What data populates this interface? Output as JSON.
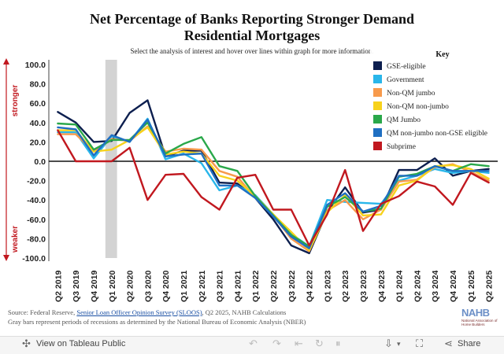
{
  "title_line1": "Net Percentage of Banks Reporting Stronger Demand",
  "title_line2": "Residential Mortgages",
  "subtitle": "Select the analysis of interest and hover over lines within graph for more information.",
  "chart_data": {
    "type": "line",
    "categories": [
      "Q2 2019",
      "Q3 2019",
      "Q4 2019",
      "Q1 2020",
      "Q2 2020",
      "Q3 2020",
      "Q4 2020",
      "Q1 2021",
      "Q2 2021",
      "Q3 2021",
      "Q4 2021",
      "Q1 2022",
      "Q2 2022",
      "Q3 2022",
      "Q4 2022",
      "Q1 2023",
      "Q2 2023",
      "Q3 2023",
      "Q4 2023",
      "Q1 2024",
      "Q2 2024",
      "Q3 2024",
      "Q4 2024",
      "Q1 2025",
      "Q2 2025"
    ],
    "ylim": [
      -100,
      100
    ],
    "yticks": [
      "100.0",
      "80.0",
      "60.0",
      "40.0",
      "20.0",
      "0.0",
      "-20.0",
      "-40.0",
      "-60.0",
      "-80.0",
      "-100.0"
    ],
    "ytick_values": [
      100,
      80,
      60,
      40,
      20,
      0,
      -20,
      -40,
      -60,
      -80,
      -100
    ],
    "side_label_top": "stronger",
    "side_label_bottom": "weaker",
    "recession_shading": {
      "from": "Q1 2020",
      "to": "Q2 2020"
    },
    "legend_title": "Key",
    "series": [
      {
        "name": "GSE-eligible",
        "color": "#0d1f4f",
        "values": [
          51,
          40,
          20,
          21,
          50,
          63,
          5,
          11,
          11,
          -22,
          -23,
          -38,
          -60,
          -87,
          -95,
          -52,
          -27,
          -53,
          -50,
          -9,
          -9,
          3,
          -15,
          -10,
          -8
        ]
      },
      {
        "name": "Government",
        "color": "#29b6ea",
        "values": [
          30,
          30,
          3,
          26,
          20,
          44,
          2,
          8,
          -2,
          -30,
          -25,
          -35,
          -55,
          -75,
          -88,
          -40,
          -42,
          -43,
          -44,
          -20,
          -15,
          -8,
          -12,
          -10,
          -12
        ]
      },
      {
        "name": "Non-QM jumbo",
        "color": "#f79a4c",
        "values": [
          28,
          28,
          10,
          23,
          21,
          36,
          10,
          13,
          12,
          -10,
          -16,
          -38,
          -56,
          -80,
          -93,
          -51,
          -40,
          -60,
          -50,
          -21,
          -19,
          -6,
          -3,
          -11,
          -20
        ]
      },
      {
        "name": "Non-QM non-jumbo",
        "color": "#f7d21c",
        "values": [
          32,
          32,
          10,
          12,
          22,
          35,
          7,
          10,
          8,
          -15,
          -20,
          -36,
          -55,
          -73,
          -92,
          -53,
          -35,
          -56,
          -55,
          -25,
          -20,
          -5,
          -4,
          -8,
          -18
        ]
      },
      {
        "name": "QM Jumbo",
        "color": "#2aa84a",
        "values": [
          39,
          38,
          12,
          22,
          22,
          40,
          8,
          18,
          25,
          -5,
          -10,
          -36,
          -56,
          -76,
          -88,
          -47,
          -37,
          -52,
          -49,
          -16,
          -13,
          -5,
          -10,
          -3,
          -5
        ]
      },
      {
        "name": "QM non-jumbo non-GSE eligible",
        "color": "#1f6fc2",
        "values": [
          35,
          33,
          6,
          27,
          20,
          43,
          5,
          7,
          8,
          -25,
          -25,
          -38,
          -57,
          -78,
          -90,
          -45,
          -33,
          -52,
          -46,
          -15,
          -15,
          -5,
          -10,
          -10,
          -10
        ]
      },
      {
        "name": "Subprime",
        "color": "#c1181f",
        "values": [
          32,
          0,
          0,
          0,
          14,
          -40,
          -14,
          -13,
          -37,
          -50,
          -17,
          -14,
          -50,
          -50,
          -87,
          -55,
          -9,
          -72,
          -44,
          -36,
          -21,
          -26,
          -45,
          -12,
          -22
        ]
      }
    ]
  },
  "footer": {
    "source_prefix": "Source: Federal Reserve, ",
    "source_link": "Senior Loan Officer Opinion Survey (SLOOS)",
    "source_suffix": ", Q2 2025, NAHB Calculations",
    "note": "Gray bars represent periods of recessions as determined by the National Bureau of Economic Analysis (NBER)"
  },
  "logo": {
    "text": "NAHB",
    "subtext": "National Association of Home Builders"
  },
  "toolbar": {
    "view_label": "View on Tableau Public",
    "share_label": "Share"
  }
}
